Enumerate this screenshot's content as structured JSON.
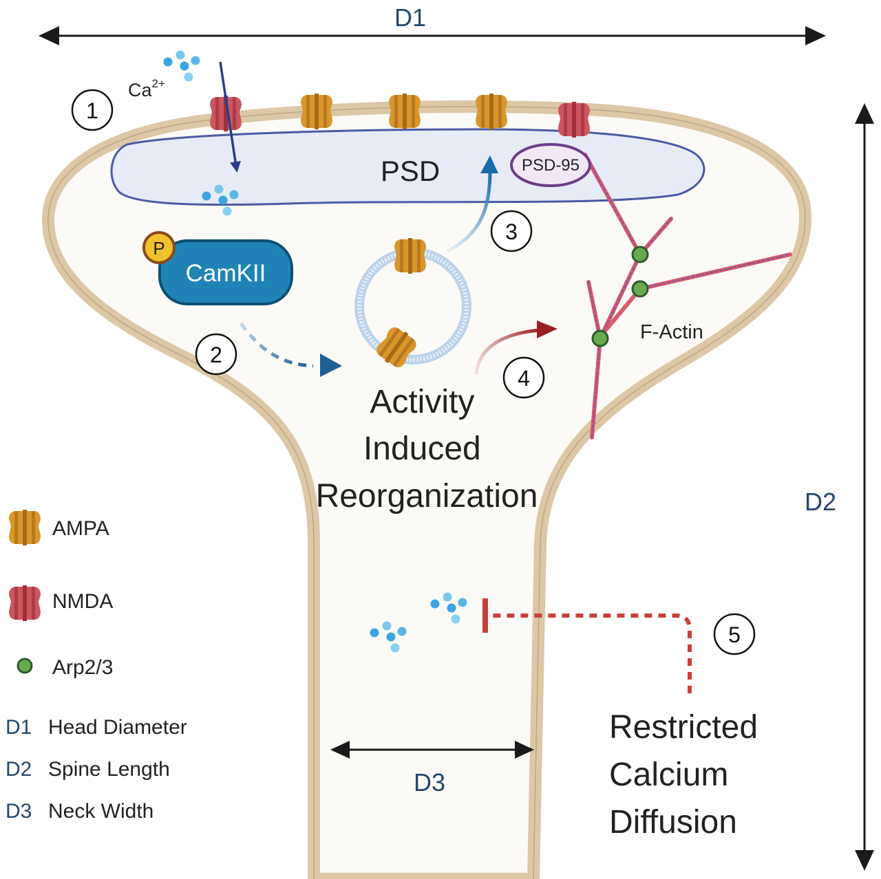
{
  "dimensions": {
    "d1": "D1",
    "d2": "D2",
    "d3": "D3"
  },
  "labels": {
    "calcium": "Ca",
    "calcium_charge": "2+",
    "psd": "PSD",
    "psd95": "PSD-95",
    "camkii": "CamKII",
    "phospho": "P",
    "f_actin": "F-Actin",
    "activity_lines": [
      "Activity",
      "Induced",
      "Reorganization"
    ],
    "restricted_lines": [
      "Restricted",
      "Calcium",
      "Diffusion"
    ]
  },
  "steps": [
    "1",
    "2",
    "3",
    "4",
    "5"
  ],
  "legend": {
    "receptors": [
      {
        "label": "AMPA"
      },
      {
        "label": "NMDA"
      },
      {
        "label": "Arp2/3"
      }
    ],
    "dimensions": [
      {
        "key": "D1",
        "label": "Head Diameter"
      },
      {
        "key": "D2",
        "label": "Spine Length"
      },
      {
        "key": "D3",
        "label": "Neck Width"
      }
    ]
  },
  "colors": {
    "membrane": "#dcc7a6",
    "cytoplasm": "#fbfaf6",
    "psd_fill": "#e6ebf7",
    "psd_stroke": "#4a5aa3",
    "ampa": "#d9962c",
    "nmda": "#cc5560",
    "camkii": "#1f84b5",
    "calcium_ion": "#3aa5e0",
    "arp": "#6aaa4e",
    "actin": "#d85a6a",
    "dimension_text": "#24476e",
    "inhibition": "#c8403a"
  }
}
